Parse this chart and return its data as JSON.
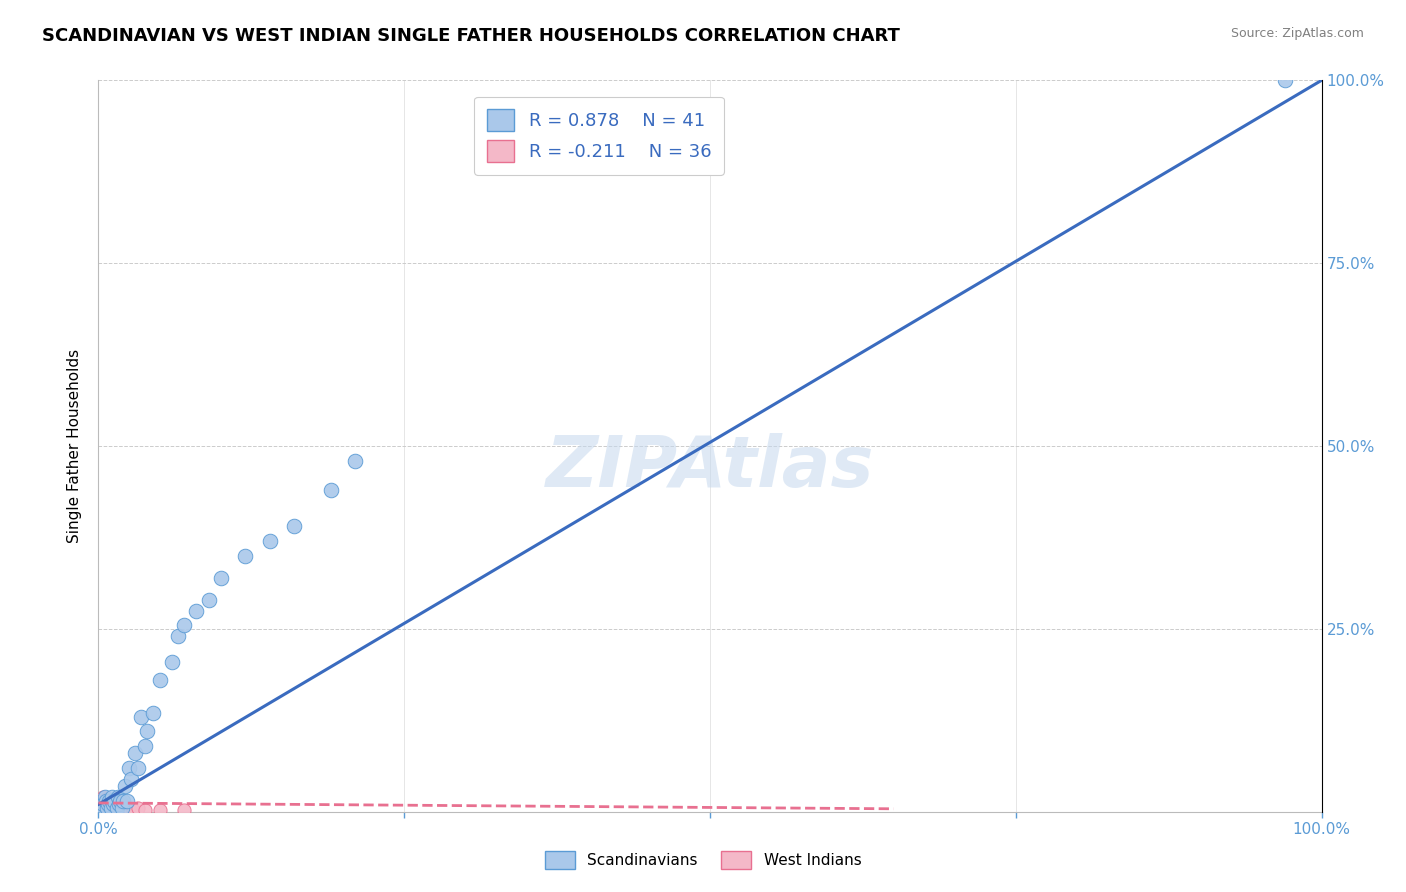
{
  "title": "SCANDINAVIAN VS WEST INDIAN SINGLE FATHER HOUSEHOLDS CORRELATION CHART",
  "source": "Source: ZipAtlas.com",
  "xlabel": "",
  "ylabel": "Single Father Households",
  "watermark": "ZIPAtlas",
  "xlim": [
    0,
    1.0
  ],
  "ylim": [
    0,
    1.0
  ],
  "xticks": [
    0,
    0.25,
    0.5,
    0.75,
    1.0
  ],
  "xticklabels": [
    "0.0%",
    "",
    "",
    "",
    "100.0%"
  ],
  "yticks_right": [
    0,
    0.25,
    0.5,
    0.75,
    1.0
  ],
  "yticklabels_right": [
    "",
    "25.0%",
    "50.0%",
    "75.0%",
    "100.0%"
  ],
  "scandinavians": {
    "x": [
      0.002,
      0.003,
      0.004,
      0.005,
      0.006,
      0.007,
      0.008,
      0.009,
      0.01,
      0.011,
      0.012,
      0.013,
      0.015,
      0.016,
      0.017,
      0.018,
      0.019,
      0.02,
      0.022,
      0.023,
      0.025,
      0.027,
      0.03,
      0.032,
      0.035,
      0.038,
      0.04,
      0.045,
      0.05,
      0.06,
      0.065,
      0.07,
      0.08,
      0.09,
      0.1,
      0.12,
      0.14,
      0.16,
      0.19,
      0.21,
      0.97
    ],
    "y": [
      0.005,
      0.008,
      0.01,
      0.02,
      0.015,
      0.005,
      0.01,
      0.015,
      0.005,
      0.02,
      0.01,
      0.015,
      0.005,
      0.02,
      0.01,
      0.015,
      0.005,
      0.015,
      0.035,
      0.015,
      0.06,
      0.045,
      0.08,
      0.06,
      0.13,
      0.09,
      0.11,
      0.135,
      0.18,
      0.205,
      0.24,
      0.255,
      0.275,
      0.29,
      0.32,
      0.35,
      0.37,
      0.39,
      0.44,
      0.48,
      1.0
    ],
    "color": "#aac8ea",
    "edge_color": "#5b9bd5",
    "R": 0.878,
    "N": 41,
    "line_color": "#3a6bbf",
    "line_x": [
      0.0,
      1.0
    ],
    "line_y": [
      0.01,
      1.0
    ]
  },
  "west_indians": {
    "x": [
      0.002,
      0.003,
      0.003,
      0.004,
      0.004,
      0.005,
      0.005,
      0.006,
      0.006,
      0.007,
      0.007,
      0.008,
      0.008,
      0.009,
      0.009,
      0.01,
      0.01,
      0.011,
      0.011,
      0.012,
      0.012,
      0.013,
      0.014,
      0.015,
      0.016,
      0.017,
      0.018,
      0.019,
      0.02,
      0.022,
      0.025,
      0.028,
      0.032,
      0.038,
      0.05,
      0.07
    ],
    "y": [
      0.01,
      0.005,
      0.015,
      0.01,
      0.02,
      0.005,
      0.015,
      0.008,
      0.018,
      0.005,
      0.012,
      0.008,
      0.018,
      0.003,
      0.012,
      0.007,
      0.015,
      0.005,
      0.013,
      0.008,
      0.015,
      0.005,
      0.01,
      0.008,
      0.005,
      0.01,
      0.003,
      0.008,
      0.005,
      0.008,
      0.005,
      0.003,
      0.005,
      0.003,
      0.003,
      0.002
    ],
    "color": "#f4b8c8",
    "edge_color": "#e87090",
    "R": -0.211,
    "N": 36,
    "line_color": "#e87090",
    "line_x": [
      0.0,
      0.65
    ],
    "line_y": [
      0.012,
      0.004
    ]
  },
  "legend_loc": "upper center",
  "title_fontsize": 13,
  "label_fontsize": 11,
  "tick_fontsize": 11,
  "watermark_fontsize": 52,
  "watermark_color": "#c5d8ee",
  "watermark_alpha": 0.55,
  "grid_color": "#cccccc",
  "grid_linestyle": "--",
  "background_color": "#ffffff"
}
